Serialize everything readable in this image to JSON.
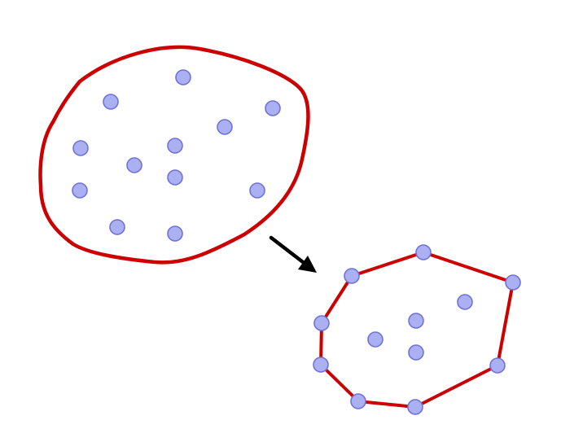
{
  "colors": {
    "outline": "#cc0000",
    "point_fill": "#aab0f2",
    "point_stroke": "#6f73d8",
    "arrow": "#000000",
    "background": "#ffffff"
  },
  "icons": {
    "arrow": "arrow-down-right-icon"
  }
}
